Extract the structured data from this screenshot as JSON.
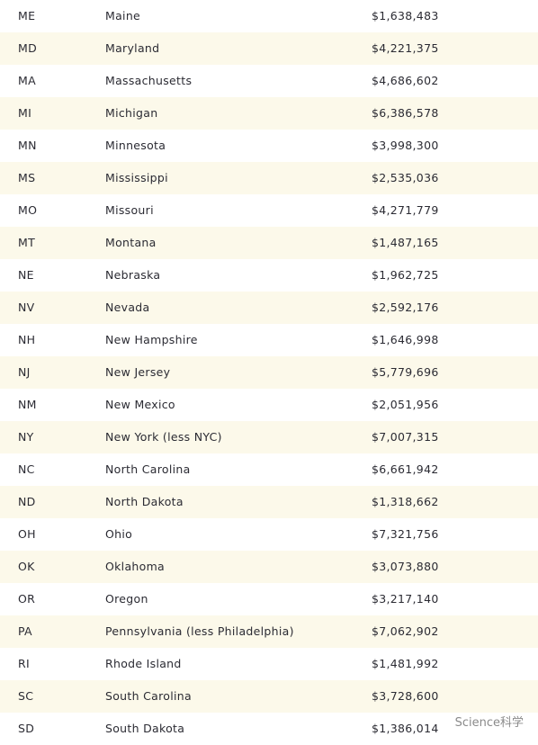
{
  "table": {
    "rows": [
      [
        "ME",
        "Maine",
        "$1,638,483"
      ],
      [
        "MD",
        "Maryland",
        "$4,221,375"
      ],
      [
        "MA",
        "Massachusetts",
        "$4,686,602"
      ],
      [
        "MI",
        "Michigan",
        "$6,386,578"
      ],
      [
        "MN",
        "Minnesota",
        "$3,998,300"
      ],
      [
        "MS",
        "Mississippi",
        "$2,535,036"
      ],
      [
        "MO",
        "Missouri",
        "$4,271,779"
      ],
      [
        "MT",
        "Montana",
        "$1,487,165"
      ],
      [
        "NE",
        "Nebraska",
        "$1,962,725"
      ],
      [
        "NV",
        "Nevada",
        "$2,592,176"
      ],
      [
        "NH",
        "New Hampshire",
        "$1,646,998"
      ],
      [
        "NJ",
        "New Jersey",
        "$5,779,696"
      ],
      [
        "NM",
        "New Mexico",
        "$2,051,956"
      ],
      [
        "NY",
        "New York (less NYC)",
        "$7,007,315"
      ],
      [
        "NC",
        "North Carolina",
        "$6,661,942"
      ],
      [
        "ND",
        "North Dakota",
        "$1,318,662"
      ],
      [
        "OH",
        "Ohio",
        "$7,321,756"
      ],
      [
        "OK",
        "Oklahoma",
        "$3,073,880"
      ],
      [
        "OR",
        "Oregon",
        "$3,217,140"
      ],
      [
        "PA",
        "Pennsylvania (less Philadelphia)",
        "$7,062,902"
      ],
      [
        "RI",
        "Rhode Island",
        "$1,481,992"
      ],
      [
        "SC",
        "South Carolina",
        "$3,728,600"
      ],
      [
        "SD",
        "South Dakota",
        "$1,386,014"
      ]
    ]
  },
  "watermark": "Science科学"
}
